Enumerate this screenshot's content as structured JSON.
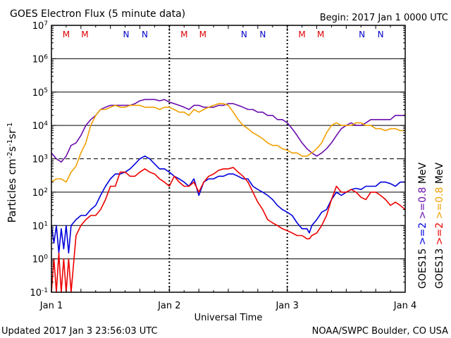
{
  "header": {
    "title": "GOES Electron Flux (5 minute data)",
    "begin": "Begin: 2017 Jan 1 0000 UTC"
  },
  "footer": {
    "updated": "Updated 2017 Jan  3 23:56:03 UTC",
    "credit": "NOAA/SWPC Boulder, CO USA"
  },
  "colors": {
    "goes15_2mev": "#0000dd",
    "goes13_2mev": "#ee0000",
    "goes15_08mev": "#6a0dad",
    "goes13_08mev": "#f0a000",
    "marker_m": "#dd0000",
    "marker_n": "#0000cc"
  },
  "chart_data": {
    "type": "line",
    "title": "GOES Electron Flux (5 minute data)",
    "xlabel": "Universal Time",
    "ylabel_parts": [
      "Particles cm",
      "-2",
      "s",
      "-1",
      "sr",
      "-1"
    ],
    "y_scale": "log",
    "ylim": [
      0.1,
      10000000
    ],
    "xlim": [
      0,
      72
    ],
    "x_unit": "hours since 2017 Jan 1 0000 UTC",
    "x_ticks": [
      {
        "x": 0,
        "label": "Jan 1"
      },
      {
        "x": 24,
        "label": "Jan 2"
      },
      {
        "x": 48,
        "label": "Jan 3"
      },
      {
        "x": 72,
        "label": "Jan 4"
      }
    ],
    "y_ticks": [
      {
        "base": "10",
        "exp": "-1"
      },
      {
        "base": "10",
        "exp": "0"
      },
      {
        "base": "10",
        "exp": "1"
      },
      {
        "base": "10",
        "exp": "2"
      },
      {
        "base": "10",
        "exp": "3"
      },
      {
        "base": "10",
        "exp": "4"
      },
      {
        "base": "10",
        "exp": "5"
      },
      {
        "base": "10",
        "exp": "6"
      },
      {
        "base": "10",
        "exp": "7"
      }
    ],
    "reference_line": 1000,
    "markers": [
      {
        "label": "M",
        "x": 3.0,
        "kind": "M"
      },
      {
        "label": "M",
        "x": 6.8,
        "kind": "M"
      },
      {
        "label": "N",
        "x": 15.2,
        "kind": "N"
      },
      {
        "label": "N",
        "x": 19.0,
        "kind": "N"
      },
      {
        "label": "M",
        "x": 27.0,
        "kind": "M"
      },
      {
        "label": "M",
        "x": 30.8,
        "kind": "M"
      },
      {
        "label": "N",
        "x": 39.2,
        "kind": "N"
      },
      {
        "label": "N",
        "x": 43.0,
        "kind": "N"
      },
      {
        "label": "M",
        "x": 51.0,
        "kind": "M"
      },
      {
        "label": "M",
        "x": 54.8,
        "kind": "M"
      },
      {
        "label": "N",
        "x": 63.2,
        "kind": "N"
      },
      {
        "label": "N",
        "x": 67.0,
        "kind": "N"
      }
    ],
    "legend": [
      {
        "text": "GOES15",
        "color": "#000000"
      },
      {
        "text": ">=2",
        "color": "#0000dd"
      },
      {
        "text": ">=0.8",
        "color": "#6a0dad"
      },
      {
        "text": "MeV",
        "color": "#000000"
      },
      {
        "text": "GOES13",
        "color": "#000000"
      },
      {
        "text": ">=2",
        "color": "#ee0000"
      },
      {
        "text": ">=0.8",
        "color": "#f0a000"
      },
      {
        "text": "MeV",
        "color": "#000000"
      }
    ],
    "series": [
      {
        "satellite": "GOES15",
        "energy": ">=2 MeV",
        "color": "#0000dd",
        "x": [
          0,
          0.5,
          1,
          1.5,
          2,
          2.5,
          3,
          3.5,
          4,
          5,
          6,
          7,
          8,
          9,
          10,
          11,
          12,
          13,
          14,
          15,
          16,
          17,
          18,
          19,
          20,
          21,
          22,
          23,
          24,
          25,
          26,
          27,
          28,
          29,
          30,
          31,
          32,
          33,
          34,
          35,
          36,
          37,
          38,
          39,
          40,
          41,
          42,
          43,
          44,
          45,
          46,
          47,
          48,
          49,
          50,
          51,
          52,
          52.5,
          53,
          54,
          55,
          56,
          57,
          58,
          59,
          60,
          61,
          62,
          63,
          64,
          65,
          66,
          67,
          68,
          69,
          70,
          71,
          72
        ],
        "y": [
          10,
          3,
          10,
          1.5,
          8,
          2,
          10,
          1.5,
          10,
          15,
          20,
          20,
          30,
          40,
          80,
          150,
          250,
          350,
          350,
          400,
          500,
          700,
          1000,
          1200,
          1000,
          700,
          500,
          500,
          400,
          300,
          250,
          200,
          150,
          250,
          80,
          200,
          250,
          250,
          300,
          300,
          350,
          350,
          300,
          250,
          250,
          150,
          120,
          100,
          80,
          60,
          40,
          30,
          25,
          20,
          12,
          8,
          8,
          6,
          10,
          15,
          25,
          30,
          60,
          100,
          80,
          100,
          120,
          130,
          120,
          150,
          150,
          150,
          200,
          200,
          180,
          150,
          200,
          200
        ]
      },
      {
        "satellite": "GOES13",
        "energy": ">=2 MeV",
        "color": "#ee0000",
        "x": [
          0,
          0.5,
          1,
          1.5,
          2,
          2.5,
          3,
          3.5,
          4,
          5,
          6,
          7,
          8,
          9,
          10,
          11,
          12,
          13,
          14,
          15,
          16,
          17,
          18,
          19,
          20,
          21,
          22,
          23,
          24,
          25,
          26,
          27,
          28,
          29,
          30,
          31,
          32,
          33,
          34,
          35,
          36,
          37,
          38,
          39,
          40,
          41,
          42,
          43,
          44,
          45,
          46,
          47,
          48,
          49,
          50,
          51,
          52,
          52.5,
          53,
          54,
          55,
          56,
          57,
          58,
          59,
          60,
          61,
          62,
          63,
          64,
          65,
          66,
          67,
          68,
          69,
          70,
          71,
          72
        ],
        "y": [
          0.1,
          1,
          0.1,
          1.5,
          0.1,
          1,
          0.1,
          1,
          0.1,
          5,
          10,
          15,
          20,
          20,
          30,
          60,
          150,
          150,
          400,
          400,
          300,
          300,
          400,
          500,
          400,
          350,
          250,
          200,
          150,
          300,
          200,
          150,
          150,
          200,
          100,
          200,
          300,
          350,
          450,
          500,
          500,
          550,
          400,
          300,
          200,
          100,
          50,
          30,
          15,
          12,
          10,
          8,
          7,
          6,
          5,
          5,
          4,
          4,
          5,
          6,
          10,
          20,
          60,
          150,
          100,
          100,
          120,
          100,
          70,
          60,
          100,
          100,
          80,
          60,
          40,
          50,
          40,
          30
        ]
      },
      {
        "satellite": "GOES15",
        "energy": ">=0.8 MeV",
        "color": "#6a0dad",
        "x": [
          0,
          1,
          2,
          3,
          4,
          5,
          6,
          7,
          8,
          9,
          10,
          11,
          12,
          13,
          14,
          15,
          16,
          17,
          18,
          19,
          20,
          21,
          22,
          23,
          24,
          25,
          26,
          27,
          28,
          29,
          30,
          31,
          32,
          33,
          34,
          35,
          36,
          37,
          38,
          39,
          40,
          41,
          42,
          43,
          44,
          45,
          46,
          47,
          48,
          49,
          50,
          51,
          52,
          53,
          54,
          55,
          56,
          57,
          58,
          59,
          60,
          61,
          62,
          63,
          64,
          65,
          66,
          67,
          68,
          69,
          70,
          71,
          72
        ],
        "y": [
          1500,
          1000,
          800,
          1200,
          2500,
          3000,
          5000,
          10000,
          15000,
          20000,
          30000,
          35000,
          40000,
          40000,
          40000,
          40000,
          40000,
          45000,
          55000,
          60000,
          60000,
          60000,
          55000,
          60000,
          50000,
          45000,
          40000,
          35000,
          30000,
          40000,
          40000,
          35000,
          35000,
          35000,
          40000,
          40000,
          45000,
          45000,
          40000,
          35000,
          30000,
          30000,
          25000,
          25000,
          20000,
          20000,
          15000,
          15000,
          12000,
          8000,
          5000,
          3000,
          2000,
          1500,
          1200,
          1500,
          2000,
          3000,
          5000,
          8000,
          10000,
          12000,
          10000,
          10000,
          12000,
          15000,
          15000,
          15000,
          15000,
          15000,
          20000,
          20000,
          20000
        ]
      },
      {
        "satellite": "GOES13",
        "energy": ">=0.8 MeV",
        "color": "#f0a000",
        "x": [
          0,
          1,
          2,
          3,
          4,
          5,
          6,
          7,
          8,
          9,
          10,
          11,
          12,
          13,
          14,
          15,
          16,
          17,
          18,
          19,
          20,
          21,
          22,
          23,
          24,
          25,
          26,
          27,
          28,
          29,
          30,
          31,
          32,
          33,
          34,
          35,
          36,
          37,
          38,
          39,
          40,
          41,
          42,
          43,
          44,
          45,
          46,
          47,
          48,
          49,
          50,
          51,
          52,
          53,
          54,
          55,
          56,
          57,
          58,
          59,
          60,
          61,
          62,
          63,
          64,
          65,
          66,
          67,
          68,
          69,
          70,
          71,
          72
        ],
        "y": [
          200,
          250,
          250,
          200,
          400,
          600,
          1500,
          3000,
          10000,
          20000,
          30000,
          30000,
          35000,
          40000,
          35000,
          35000,
          40000,
          40000,
          40000,
          35000,
          35000,
          35000,
          30000,
          35000,
          35000,
          30000,
          25000,
          25000,
          20000,
          30000,
          25000,
          30000,
          35000,
          40000,
          45000,
          45000,
          40000,
          25000,
          15000,
          10000,
          8000,
          6000,
          5000,
          4000,
          3000,
          2500,
          2500,
          2000,
          1800,
          1500,
          1500,
          1200,
          1200,
          1500,
          2000,
          3000,
          6000,
          10000,
          12000,
          10000,
          10000,
          10000,
          12000,
          12000,
          10000,
          10000,
          8000,
          8000,
          7000,
          8000,
          8000,
          7000,
          7000
        ]
      }
    ]
  }
}
